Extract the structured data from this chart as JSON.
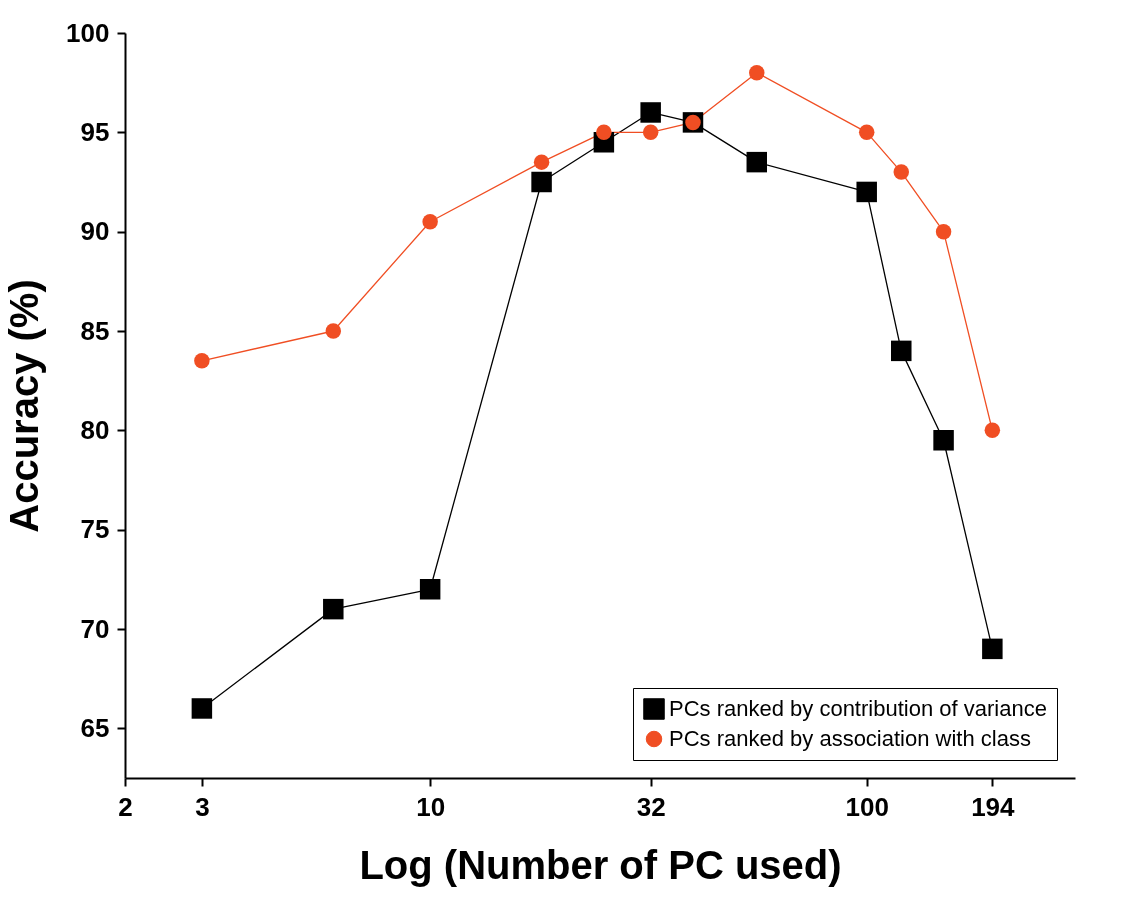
{
  "chart_data": {
    "type": "line",
    "xlabel": "Log (Number of PC used)",
    "ylabel": "Accuracy (%)",
    "log": "x",
    "xlim": [
      2,
      300
    ],
    "xticks": [
      2,
      3,
      10,
      32,
      100,
      194
    ],
    "ylim": [
      62.5,
      100
    ],
    "yticks": [
      65,
      70,
      75,
      80,
      85,
      90,
      95,
      100
    ],
    "grid": false,
    "legend": "bottom right",
    "line_style": "solid",
    "series": [
      {
        "name": "PCs ranked by contribution of variance",
        "color": "#000000",
        "marker": "square",
        "x": [
          3,
          6,
          10,
          18,
          25,
          32,
          40,
          56,
          100,
          120,
          150,
          194
        ],
        "values": [
          66,
          71,
          72,
          92.5,
          94.5,
          96,
          95.5,
          93.5,
          92,
          84,
          79.5,
          69
        ]
      },
      {
        "name": "PCs ranked by association with class",
        "color": "#f04e23",
        "marker": "circle",
        "x": [
          3,
          6,
          10,
          18,
          25,
          32,
          40,
          56,
          100,
          120,
          150,
          194
        ],
        "values": [
          83.5,
          85,
          90.5,
          93.5,
          95,
          95,
          95.5,
          98,
          95,
          93,
          90,
          80
        ]
      }
    ]
  }
}
